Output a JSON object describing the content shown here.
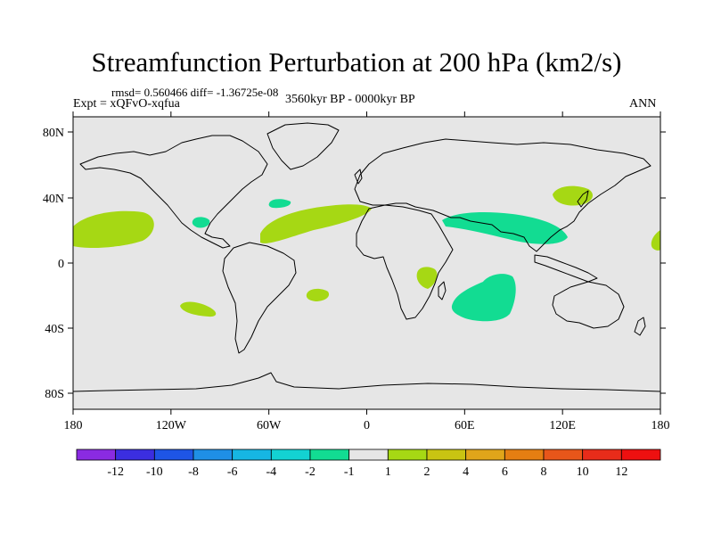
{
  "title": "Streamfunction Perturbation at 200 hPa (km2/s)",
  "stats": "rmsd= 0.560466 diff= -1.36725e-08",
  "experiment": "Expt = xQFvO-xqfua",
  "period": "3560kyr BP - 0000kyr BP",
  "season": "ANN",
  "map": {
    "background": "#e6e6e6",
    "lat_ticks": [
      "80N",
      "40N",
      "0",
      "40S",
      "80S"
    ],
    "lon_ticks": [
      "180",
      "120W",
      "60W",
      "0",
      "60E",
      "120E",
      "180"
    ],
    "anomalies": [
      {
        "name": "north-pacific-positive",
        "class": "1 to 2",
        "color": "#a6d814"
      },
      {
        "name": "north-atlantic-positive",
        "class": "1 to 2",
        "color": "#a6d814"
      },
      {
        "name": "east-asia-positive",
        "class": "1 to 2",
        "color": "#a6d814"
      },
      {
        "name": "east-africa-positive",
        "class": "1 to 2",
        "color": "#a6d814"
      },
      {
        "name": "south-atlantic-positive",
        "class": "1 to 2",
        "color": "#a6d814"
      },
      {
        "name": "south-pacific-positive",
        "class": "1 to 2",
        "color": "#a6d814"
      },
      {
        "name": "mexico-negative",
        "class": "-2 to -1",
        "color": "#12dc92"
      },
      {
        "name": "mid-atlantic-negative",
        "class": "-2 to -1",
        "color": "#12dc92"
      },
      {
        "name": "south-asia-negative",
        "class": "-2 to -1",
        "color": "#12dc92"
      },
      {
        "name": "indian-ocean-negative",
        "class": "-2 to -1",
        "color": "#12dc92"
      }
    ]
  },
  "colorbar": {
    "labels": [
      "-12",
      "-10",
      "-8",
      "-6",
      "-4",
      "-2",
      "-1",
      "1",
      "2",
      "4",
      "6",
      "8",
      "10",
      "12"
    ],
    "colors": [
      "#8a2be2",
      "#3b2ee0",
      "#1e55e6",
      "#1f8fe6",
      "#16b6e3",
      "#13d2d2",
      "#12dc92",
      "#e6e6e6",
      "#a6d814",
      "#c9c412",
      "#e0a51a",
      "#e57e12",
      "#e8561a",
      "#e82c1a",
      "#ee1010"
    ]
  }
}
